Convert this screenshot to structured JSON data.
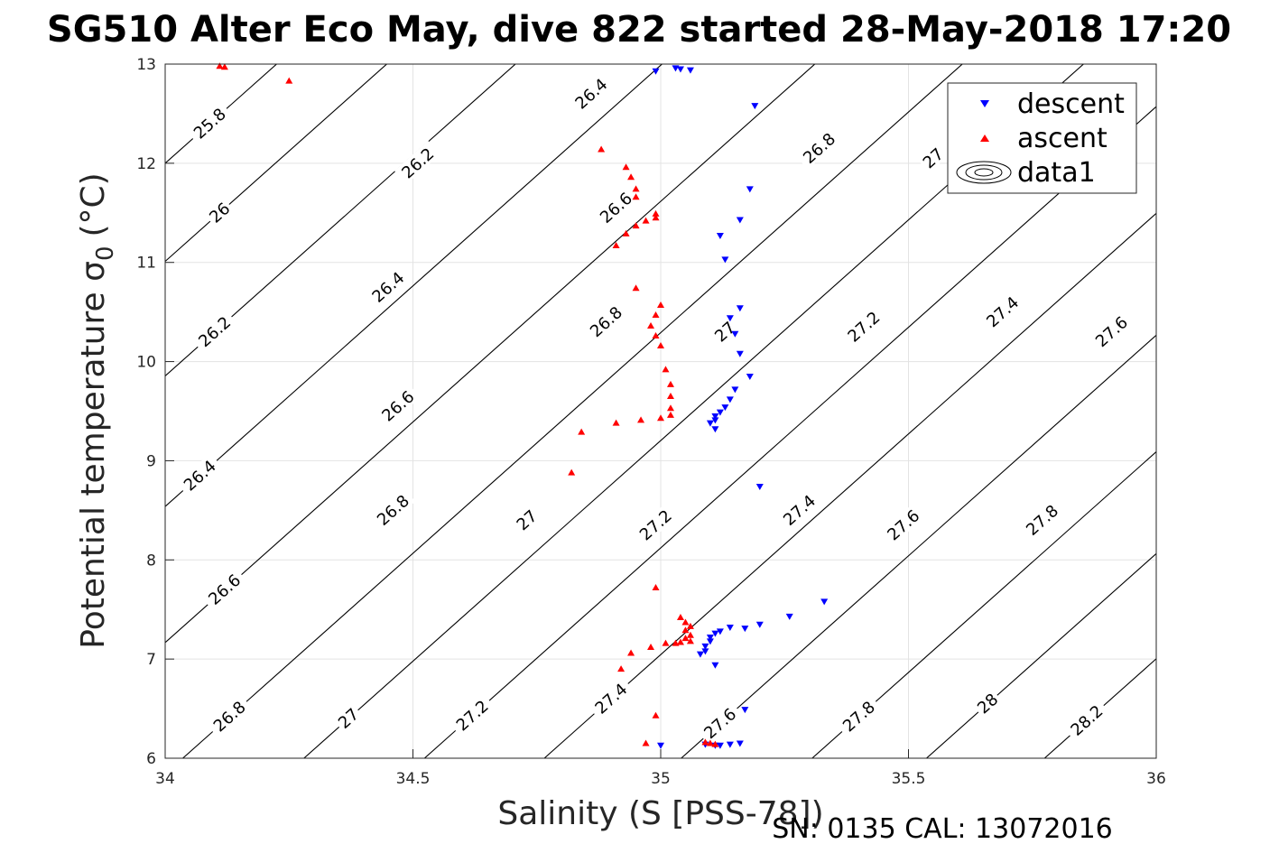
{
  "chart_data": {
    "type": "scatter",
    "title": "SG510 Alter Eco May, dive 822 started 28-May-2018 17:20",
    "xlabel": "Salinity (S [PSS-78])",
    "ylabel": "Potential temperature σ",
    "ylabel_sub": "0",
    "ylabel_unit": "(°C)",
    "footer": "SN: 0135  CAL: 13072016",
    "xlim": [
      34,
      36
    ],
    "ylim": [
      6,
      13
    ],
    "xticks": [
      "34",
      "34.5",
      "35",
      "35.5",
      "36"
    ],
    "yticks": [
      "6",
      "7",
      "8",
      "9",
      "10",
      "11",
      "12",
      "13"
    ],
    "grid": true,
    "legend_position": "top-right",
    "legend": [
      "descent",
      "ascent",
      "data1"
    ],
    "colors": {
      "descent": "#0000ff",
      "ascent": "#ff0000",
      "contour": "#000000"
    },
    "contour_labels": [
      {
        "text": "25.8",
        "x": 34.09,
        "y": 12.4
      },
      {
        "text": "26",
        "x": 34.11,
        "y": 11.5
      },
      {
        "text": "26.2",
        "x": 34.1,
        "y": 10.3
      },
      {
        "text": "26.4",
        "x": 34.07,
        "y": 8.85
      },
      {
        "text": "26.6",
        "x": 34.12,
        "y": 7.7
      },
      {
        "text": "26.8",
        "x": 34.13,
        "y": 6.42
      },
      {
        "text": "27",
        "x": 34.37,
        "y": 6.4
      },
      {
        "text": "27.2",
        "x": 34.62,
        "y": 6.43
      },
      {
        "text": "27.4",
        "x": 34.9,
        "y": 6.6
      },
      {
        "text": "27.6",
        "x": 35.12,
        "y": 6.35
      },
      {
        "text": "27.8",
        "x": 35.4,
        "y": 6.42
      },
      {
        "text": "28",
        "x": 35.66,
        "y": 6.55
      },
      {
        "text": "28.2",
        "x": 35.86,
        "y": 6.38
      },
      {
        "text": "26.2",
        "x": 34.51,
        "y": 12.0
      },
      {
        "text": "26.4",
        "x": 34.45,
        "y": 10.75
      },
      {
        "text": "26.6",
        "x": 34.47,
        "y": 9.55
      },
      {
        "text": "26.8",
        "x": 34.46,
        "y": 8.5
      },
      {
        "text": "27",
        "x": 34.73,
        "y": 8.4
      },
      {
        "text": "27.2",
        "x": 34.99,
        "y": 8.35
      },
      {
        "text": "27.4",
        "x": 35.28,
        "y": 8.5
      },
      {
        "text": "27.6",
        "x": 35.49,
        "y": 8.35
      },
      {
        "text": "27.8",
        "x": 35.77,
        "y": 8.4
      },
      {
        "text": "26.4",
        "x": 34.86,
        "y": 12.7
      },
      {
        "text": "26.6",
        "x": 34.91,
        "y": 11.55
      },
      {
        "text": "26.8",
        "x": 34.89,
        "y": 10.4
      },
      {
        "text": "27",
        "x": 35.13,
        "y": 10.3
      },
      {
        "text": "27.2",
        "x": 35.41,
        "y": 10.35
      },
      {
        "text": "27.4",
        "x": 35.69,
        "y": 10.5
      },
      {
        "text": "27.6",
        "x": 35.91,
        "y": 10.3
      },
      {
        "text": "26.8",
        "x": 35.32,
        "y": 12.15
      },
      {
        "text": "27",
        "x": 35.55,
        "y": 12.05
      }
    ],
    "series": [
      {
        "name": "descent",
        "marker": "triangle-down",
        "points": [
          [
            34.99,
            12.93
          ],
          [
            35.03,
            12.96
          ],
          [
            35.04,
            12.95
          ],
          [
            35.06,
            12.94
          ],
          [
            35.19,
            12.58
          ],
          [
            35.18,
            11.74
          ],
          [
            35.16,
            11.43
          ],
          [
            35.12,
            11.27
          ],
          [
            35.13,
            11.03
          ],
          [
            35.16,
            10.54
          ],
          [
            35.14,
            10.44
          ],
          [
            35.15,
            10.28
          ],
          [
            35.16,
            10.08
          ],
          [
            35.18,
            9.85
          ],
          [
            35.15,
            9.72
          ],
          [
            35.14,
            9.62
          ],
          [
            35.13,
            9.54
          ],
          [
            35.12,
            9.49
          ],
          [
            35.11,
            9.45
          ],
          [
            35.11,
            9.41
          ],
          [
            35.1,
            9.38
          ],
          [
            35.11,
            9.32
          ],
          [
            35.2,
            8.74
          ],
          [
            35.33,
            7.58
          ],
          [
            35.26,
            7.43
          ],
          [
            35.2,
            7.35
          ],
          [
            35.17,
            7.31
          ],
          [
            35.14,
            7.32
          ],
          [
            35.12,
            7.28
          ],
          [
            35.11,
            7.26
          ],
          [
            35.1,
            7.22
          ],
          [
            35.1,
            7.18
          ],
          [
            35.09,
            7.13
          ],
          [
            35.09,
            7.08
          ],
          [
            35.08,
            7.05
          ],
          [
            35.11,
            6.94
          ],
          [
            35.17,
            6.49
          ],
          [
            35.0,
            6.13
          ],
          [
            35.09,
            6.14
          ],
          [
            35.11,
            6.13
          ],
          [
            35.12,
            6.13
          ],
          [
            35.14,
            6.14
          ],
          [
            35.16,
            6.15
          ]
        ]
      },
      {
        "name": "ascent",
        "marker": "triangle-up",
        "points": [
          [
            34.11,
            12.98
          ],
          [
            34.12,
            12.97
          ],
          [
            34.25,
            12.83
          ],
          [
            34.88,
            12.14
          ],
          [
            34.93,
            11.96
          ],
          [
            34.94,
            11.86
          ],
          [
            34.95,
            11.74
          ],
          [
            34.95,
            11.66
          ],
          [
            34.99,
            11.49
          ],
          [
            34.99,
            11.45
          ],
          [
            34.97,
            11.42
          ],
          [
            34.95,
            11.37
          ],
          [
            34.93,
            11.29
          ],
          [
            34.91,
            11.17
          ],
          [
            34.95,
            10.74
          ],
          [
            35.0,
            10.57
          ],
          [
            34.99,
            10.47
          ],
          [
            34.98,
            10.36
          ],
          [
            34.99,
            10.26
          ],
          [
            35.0,
            10.16
          ],
          [
            35.01,
            9.92
          ],
          [
            35.02,
            9.77
          ],
          [
            35.02,
            9.65
          ],
          [
            35.02,
            9.53
          ],
          [
            35.02,
            9.46
          ],
          [
            35.0,
            9.43
          ],
          [
            34.96,
            9.41
          ],
          [
            34.91,
            9.38
          ],
          [
            34.84,
            9.29
          ],
          [
            34.82,
            8.88
          ],
          [
            34.99,
            7.72
          ],
          [
            35.04,
            7.42
          ],
          [
            35.05,
            7.37
          ],
          [
            35.06,
            7.33
          ],
          [
            35.05,
            7.29
          ],
          [
            35.06,
            7.24
          ],
          [
            35.05,
            7.21
          ],
          [
            35.06,
            7.18
          ],
          [
            35.04,
            7.17
          ],
          [
            35.03,
            7.16
          ],
          [
            35.01,
            7.16
          ],
          [
            34.98,
            7.12
          ],
          [
            34.94,
            7.06
          ],
          [
            34.92,
            6.9
          ],
          [
            34.99,
            6.43
          ],
          [
            34.97,
            6.15
          ],
          [
            35.09,
            6.16
          ],
          [
            35.1,
            6.15
          ],
          [
            35.11,
            6.14
          ]
        ]
      }
    ]
  }
}
